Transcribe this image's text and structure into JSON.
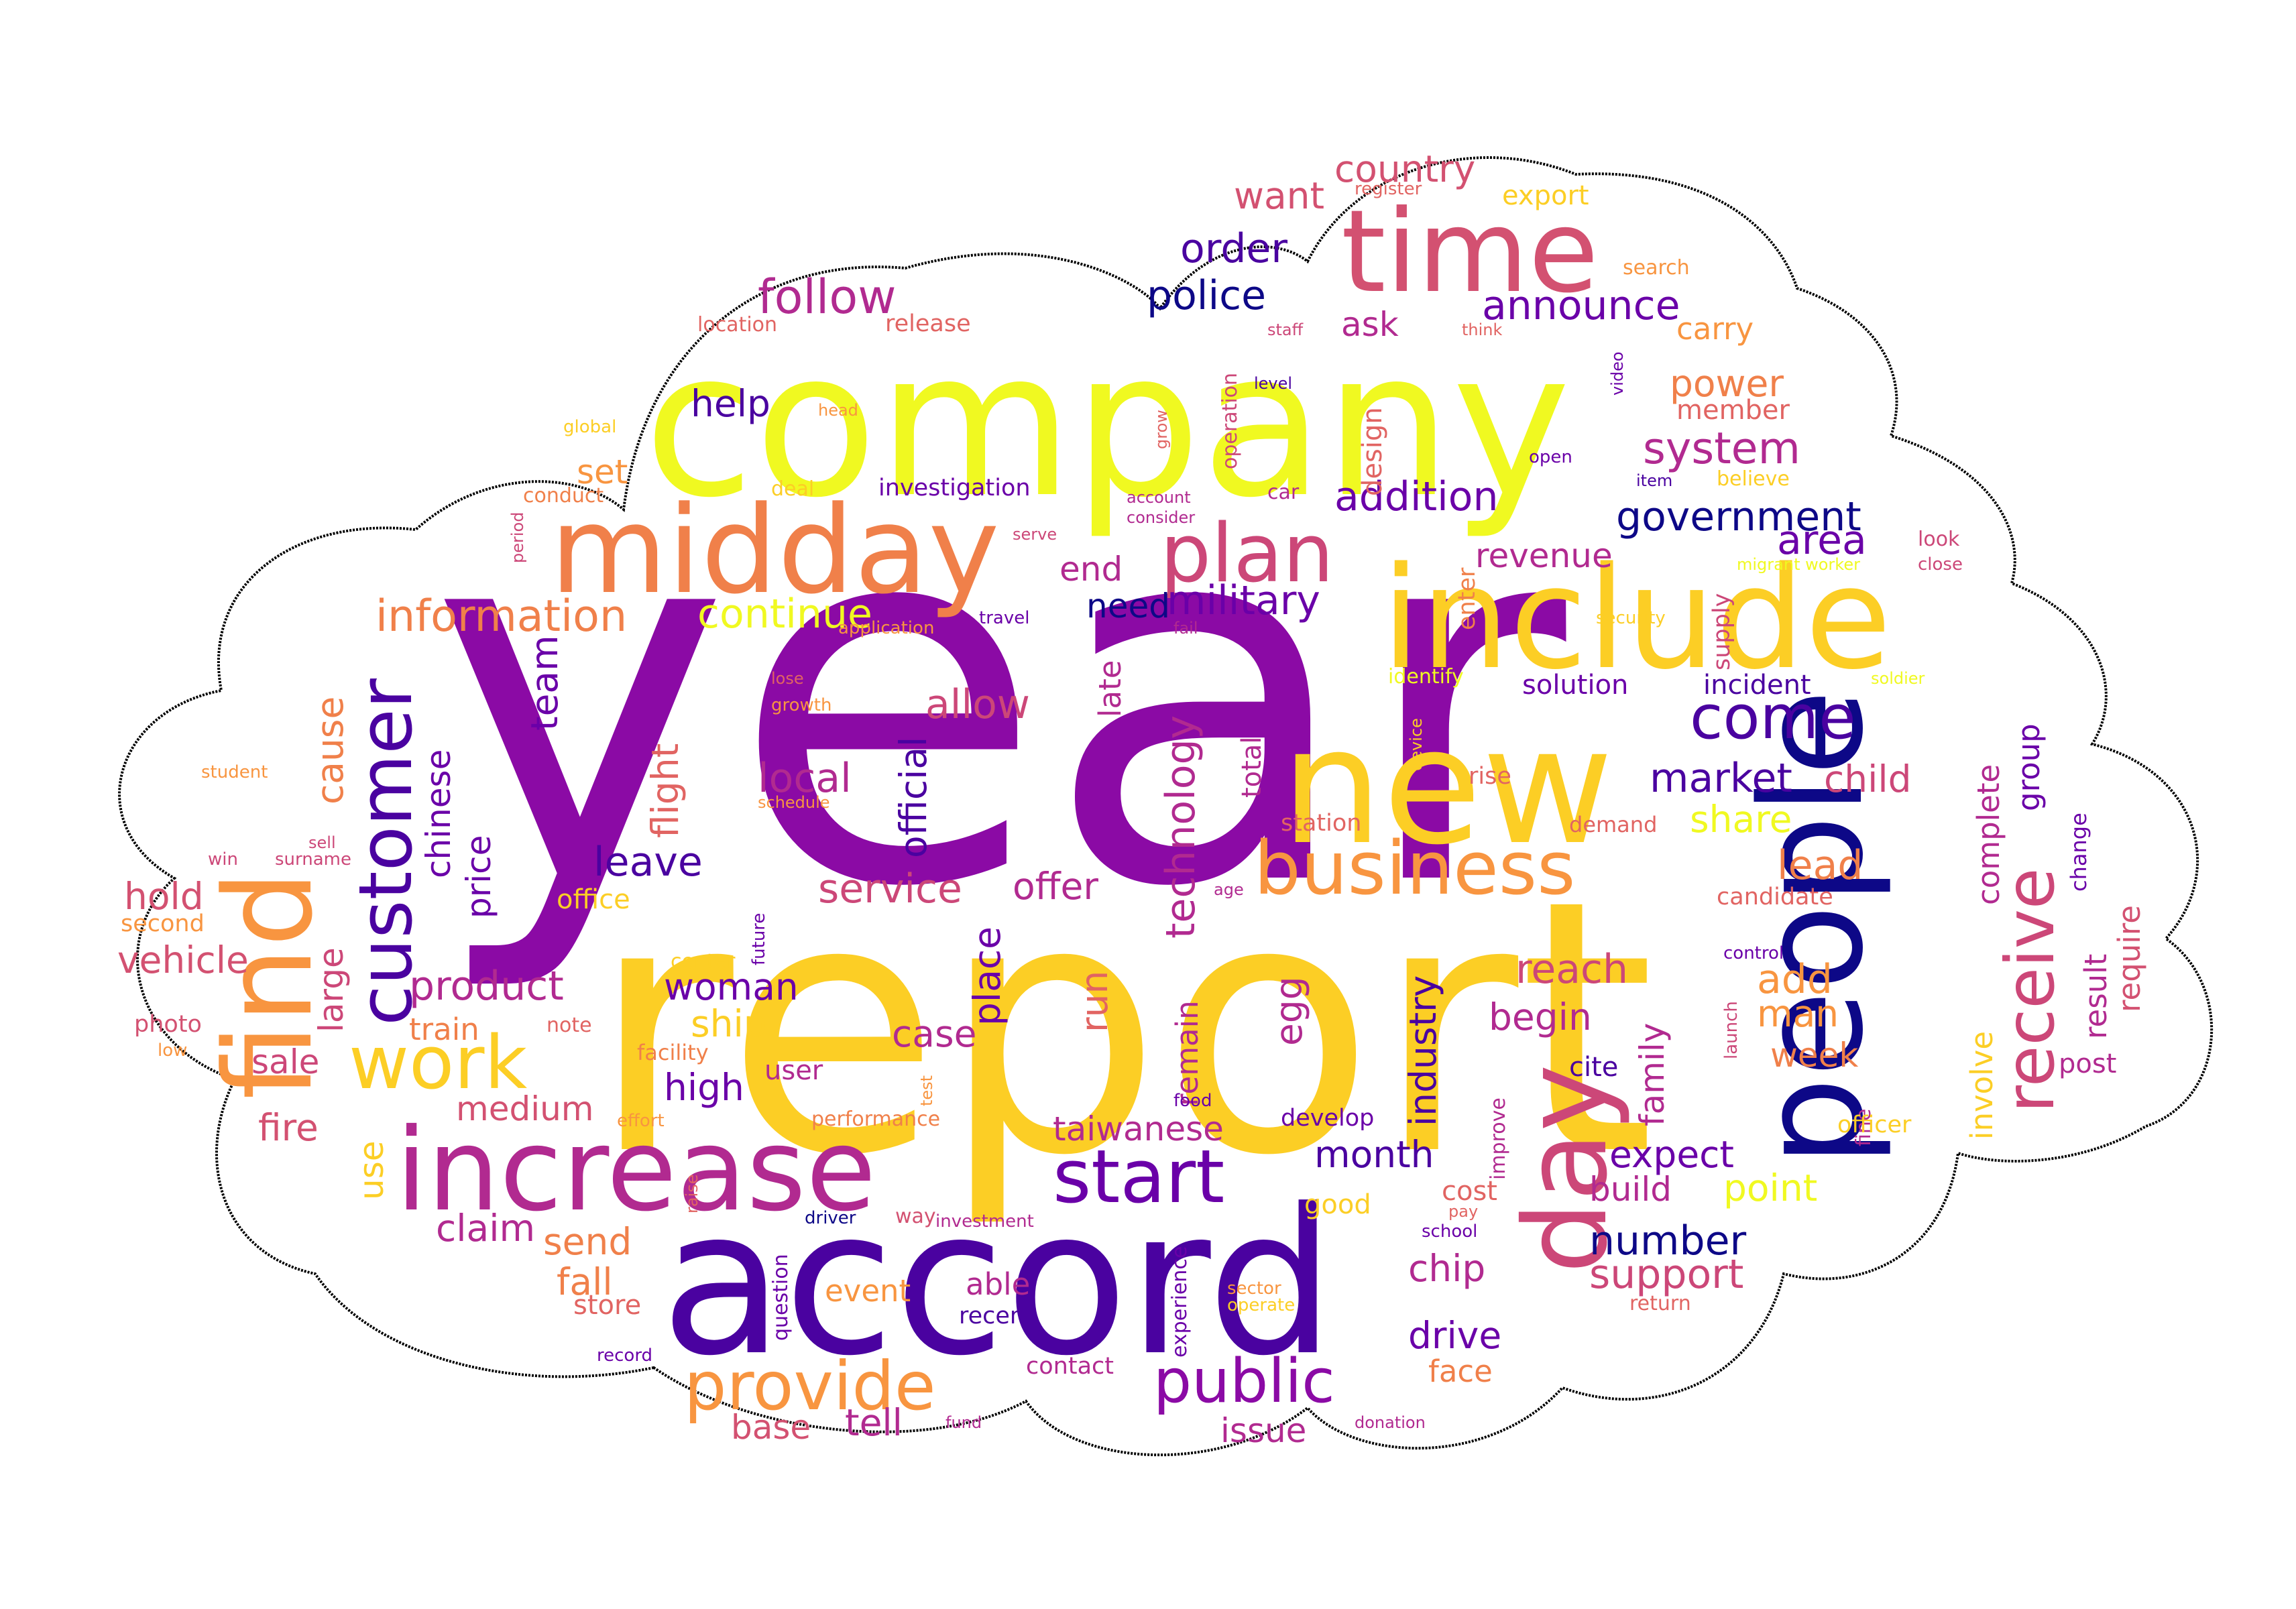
{
  "palette": {
    "purple": "#8b0aa5",
    "dark_blue": "#0d0887",
    "indigo": "#4a02a0",
    "violet": "#6a00a8",
    "magenta": "#b12a90",
    "pink": "#cc4778",
    "rose": "#d35171",
    "salmon": "#e16462",
    "orange": "#f0804a",
    "light_orange": "#f89540",
    "gold": "#fcce25",
    "yellow": "#f0f921",
    "outline": "#000000"
  },
  "words": [
    "year",
    "report",
    "company",
    "accord",
    "include",
    "people",
    "new",
    "midday",
    "increase",
    "find",
    "time",
    "day",
    "business",
    "customer",
    "plan",
    "work",
    "start",
    "provide",
    "public",
    "receive",
    "come",
    "information",
    "continue",
    "military",
    "addition",
    "government",
    "follow",
    "announce",
    "order",
    "police",
    "country",
    "want",
    "help",
    "system",
    "power",
    "member",
    "technology",
    "revenue",
    "area",
    "local",
    "allow",
    "official",
    "flight",
    "team",
    "market",
    "child",
    "incident",
    "solution",
    "complete",
    "group",
    "share",
    "lead",
    "service",
    "offer",
    "price",
    "chinese",
    "cause",
    "leave",
    "hold",
    "vehicle",
    "large",
    "product",
    "reach",
    "begin",
    "add",
    "man",
    "week",
    "woman",
    "ship",
    "place",
    "run",
    "case",
    "sale",
    "train",
    "egg",
    "industry",
    "family",
    "involve",
    "result",
    "require",
    "medium",
    "high",
    "user",
    "taiwanese",
    "month",
    "expect",
    "build",
    "point",
    "number",
    "support",
    "chip",
    "fire",
    "use",
    "claim",
    "send",
    "fall",
    "drive",
    "event",
    "able",
    "recent",
    "store",
    "tell",
    "base",
    "issue",
    "face",
    "contact",
    "remain",
    "total",
    "late",
    "need",
    "end",
    "ask",
    "carry",
    "export",
    "search",
    "design",
    "enter",
    "supply",
    "set",
    "conduct",
    "investigation",
    "deal",
    "head",
    "location",
    "release",
    "staff",
    "think",
    "video",
    "level",
    "grow",
    "operation",
    "account",
    "consider",
    "car",
    "serve",
    "open",
    "item",
    "believe",
    "look",
    "close",
    "migrant worker",
    "security",
    "soldier",
    "travel",
    "fail",
    "application",
    "lose",
    "growth",
    "schedule",
    "device",
    "identify",
    "rise",
    "station",
    "demand",
    "change",
    "candidate",
    "control",
    "launch",
    "post",
    "cite",
    "improve",
    "food",
    "develop",
    "fine",
    "officer",
    "cost",
    "good",
    "school",
    "pay",
    "sector",
    "operate",
    "return",
    "experience",
    "record",
    "fund",
    "donation",
    "question",
    "driver",
    "way",
    "investment",
    "raise",
    "effort",
    "performance",
    "test",
    "center",
    "facility",
    "note",
    "low",
    "photo",
    "future",
    "second",
    "surname",
    "sell",
    "win",
    "student",
    "period",
    "global",
    "age",
    "office",
    "register"
  ]
}
